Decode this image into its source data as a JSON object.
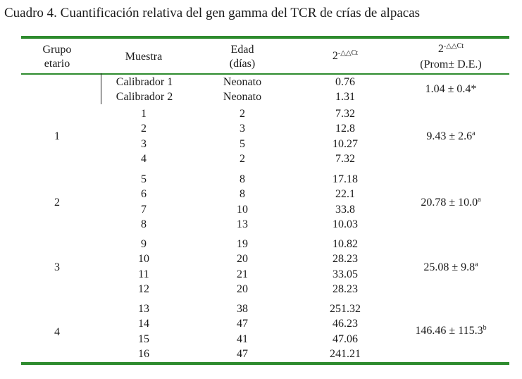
{
  "caption": "Cuadro 4. Cuantificación relativa del gen gamma del TCR de crías de alpacas",
  "headers": {
    "grupo_line1": "Grupo",
    "grupo_line2": "etario",
    "muestra": "Muestra",
    "edad_line1": "Edad",
    "edad_line2": "(días)",
    "ddct_base": "2",
    "ddct_exp": "-△△Ct",
    "prom_base": "2",
    "prom_exp": "-△△Ct",
    "prom_line2": "(Prom± D.E.)"
  },
  "calibrators": {
    "rows": [
      {
        "muestra": "Calibrador 1",
        "edad": "Neonato",
        "value": "0.76"
      },
      {
        "muestra": "Calibrador 2",
        "edad": "Neonato",
        "value": "1.31"
      }
    ],
    "summary": "1.04 ± 0.4*"
  },
  "groups": [
    {
      "grupo": "1",
      "rows": [
        {
          "muestra": "1",
          "edad": "2",
          "value": "7.32"
        },
        {
          "muestra": "2",
          "edad": "3",
          "value": "12.8"
        },
        {
          "muestra": "3",
          "edad": "5",
          "value": "10.27"
        },
        {
          "muestra": "4",
          "edad": "2",
          "value": "7.32"
        }
      ],
      "summary": "9.43 ± 2.6",
      "summary_sup": "a"
    },
    {
      "grupo": "2",
      "rows": [
        {
          "muestra": "5",
          "edad": "8",
          "value": "17.18"
        },
        {
          "muestra": "6",
          "edad": "8",
          "value": "22.1"
        },
        {
          "muestra": "7",
          "edad": "10",
          "value": "33.8"
        },
        {
          "muestra": "8",
          "edad": "13",
          "value": "10.03"
        }
      ],
      "summary": "20.78 ± 10.0",
      "summary_sup": "a"
    },
    {
      "grupo": "3",
      "rows": [
        {
          "muestra": "9",
          "edad": "19",
          "value": "10.82"
        },
        {
          "muestra": "10",
          "edad": "20",
          "value": "28.23"
        },
        {
          "muestra": "11",
          "edad": "21",
          "value": "33.05"
        },
        {
          "muestra": "12",
          "edad": "20",
          "value": "28.23"
        }
      ],
      "summary": "25.08 ± 9.8",
      "summary_sup": "a"
    },
    {
      "grupo": "4",
      "rows": [
        {
          "muestra": "13",
          "edad": "38",
          "value": "251.32"
        },
        {
          "muestra": "14",
          "edad": "47",
          "value": "46.23"
        },
        {
          "muestra": "15",
          "edad": "41",
          "value": "47.06"
        },
        {
          "muestra": "16",
          "edad": "47",
          "value": "241.21"
        }
      ],
      "summary": "146.46 ± 115.3",
      "summary_sup": "b"
    }
  ],
  "colors": {
    "rule": "#2e8b2e",
    "text": "#1a1a1a"
  }
}
